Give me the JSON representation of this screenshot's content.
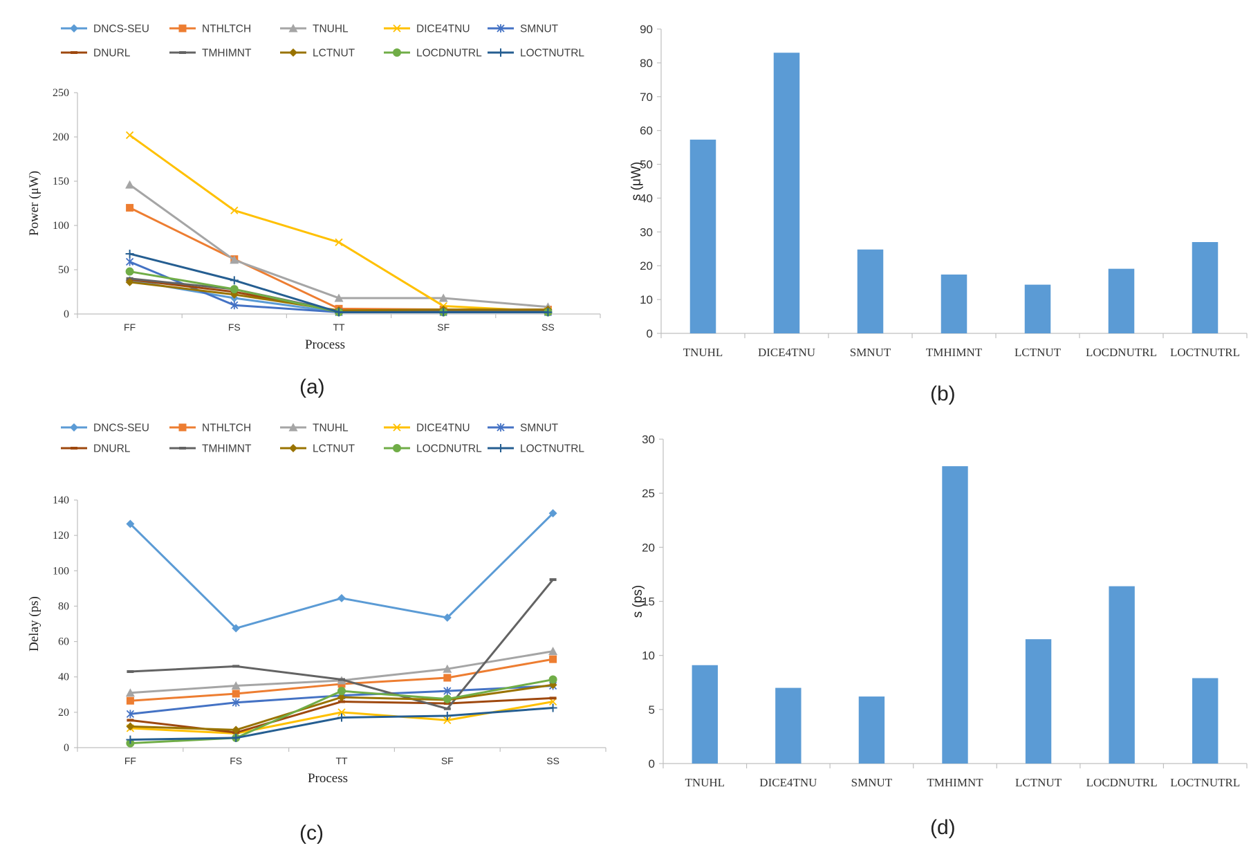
{
  "colors": {
    "DNCS-SEU": "#5b9bd5",
    "NTHLTCH": "#ed7d31",
    "TNUHL": "#a5a5a5",
    "DICE4TNU": "#ffc000",
    "SMNUT": "#4472c4",
    "DNURL": "#9e480e",
    "TMHIMNT": "#636363",
    "LCTNUT": "#997300",
    "LOCDNUTRL": "#70ad47",
    "LOCTNUTRL": "#255e91",
    "bar": "#5b9bd5",
    "axis": "#bfbfbf"
  },
  "markers": {
    "DNCS-SEU": "diamond",
    "NTHLTCH": "square",
    "TNUHL": "triangle",
    "DICE4TNU": "x",
    "SMNUT": "star",
    "DNURL": "dash",
    "TMHIMNT": "dash",
    "LCTNUT": "diamond",
    "LOCDNUTRL": "circle",
    "LOCTNUTRL": "plus"
  },
  "chart_data": [
    {
      "type": "line",
      "panel_label": "(a)",
      "ylabel": "Power (μW)",
      "xlabel": "Process",
      "categories": [
        "FF",
        "FS",
        "TT",
        "SF",
        "SS"
      ],
      "ylim": [
        0,
        250
      ],
      "yticks": [
        0,
        50,
        100,
        150,
        200,
        250
      ],
      "legend_rows": [
        [
          "DNCS-SEU",
          "NTHLTCH",
          "TNUHL",
          "DICE4TNU",
          "SMNUT"
        ],
        [
          "DNURL",
          "TMHIMNT",
          "LCTNUT",
          "LOCDNUTRL",
          "LOCTNUTRL"
        ]
      ],
      "series": [
        {
          "name": "DNCS-SEU",
          "values": [
            38,
            18,
            2,
            2,
            2
          ]
        },
        {
          "name": "NTHLTCH",
          "values": [
            120,
            62,
            6,
            5,
            5
          ]
        },
        {
          "name": "TNUHL",
          "values": [
            146,
            61,
            18,
            18,
            8
          ]
        },
        {
          "name": "DICE4TNU",
          "values": [
            202,
            117,
            81,
            9,
            3
          ]
        },
        {
          "name": "SMNUT",
          "values": [
            59,
            10,
            2,
            2,
            2
          ]
        },
        {
          "name": "DNURL",
          "values": [
            39,
            25,
            3,
            3,
            3
          ]
        },
        {
          "name": "TMHIMNT",
          "values": [
            40,
            28,
            3,
            3,
            3
          ]
        },
        {
          "name": "LCTNUT",
          "values": [
            36,
            22,
            4,
            5,
            5
          ]
        },
        {
          "name": "LOCDNUTRL",
          "values": [
            48,
            28,
            2,
            2,
            2
          ]
        },
        {
          "name": "LOCTNUTRL",
          "values": [
            68,
            38,
            2,
            2,
            2
          ]
        }
      ]
    },
    {
      "type": "bar",
      "panel_label": "(b)",
      "ylabel": "s (μW)",
      "categories": [
        "TNUHL",
        "DICE4TNU",
        "SMNUT",
        "TMHIMNT",
        "LCTNUT",
        "LOCDNUTRL",
        "LOCTNUTRL"
      ],
      "values": [
        57.3,
        83,
        24.8,
        17.4,
        14.4,
        19.1,
        27
      ],
      "ylim": [
        0,
        90
      ],
      "yticks": [
        0,
        10,
        20,
        30,
        40,
        50,
        60,
        70,
        80,
        90
      ]
    },
    {
      "type": "line",
      "panel_label": "(c)",
      "ylabel": "Delay (ps)",
      "xlabel": "Process",
      "categories": [
        "FF",
        "FS",
        "TT",
        "SF",
        "SS"
      ],
      "ylim": [
        0,
        140
      ],
      "yticks": [
        0,
        20,
        40,
        60,
        80,
        100,
        120,
        140
      ],
      "legend_rows": [
        [
          "DNCS-SEU",
          "NTHLTCH",
          "TNUHL",
          "DICE4TNU",
          "SMNUT"
        ],
        [
          "DNURL",
          "TMHIMNT",
          "LCTNUT",
          "LOCDNUTRL",
          "LOCTNUTRL"
        ]
      ],
      "series": [
        {
          "name": "DNCS-SEU",
          "values": [
            126.5,
            67.5,
            84.5,
            73.5,
            132.5
          ]
        },
        {
          "name": "NTHLTCH",
          "values": [
            26.5,
            30.5,
            36,
            39.5,
            50
          ]
        },
        {
          "name": "TNUHL",
          "values": [
            31,
            35,
            38,
            44.5,
            54.5
          ]
        },
        {
          "name": "DICE4TNU",
          "values": [
            11,
            8,
            20,
            15.5,
            26
          ]
        },
        {
          "name": "SMNUT",
          "values": [
            19,
            25.5,
            29.5,
            32,
            35
          ]
        },
        {
          "name": "DNURL",
          "values": [
            15.5,
            8.5,
            26,
            25,
            28
          ]
        },
        {
          "name": "TMHIMNT",
          "values": [
            43,
            46,
            38.5,
            22,
            95
          ]
        },
        {
          "name": "LCTNUT",
          "values": [
            12,
            10,
            28.5,
            27,
            35.5
          ]
        },
        {
          "name": "LOCDNUTRL",
          "values": [
            2.5,
            5.5,
            32,
            27.5,
            38.5
          ]
        },
        {
          "name": "LOCTNUTRL",
          "values": [
            4.5,
            5.5,
            17,
            18,
            22.5
          ]
        }
      ]
    },
    {
      "type": "bar",
      "panel_label": "(d)",
      "ylabel": "s (ps)",
      "categories": [
        "TNUHL",
        "DICE4TNU",
        "SMNUT",
        "TMHIMNT",
        "LCTNUT",
        "LOCDNUTRL",
        "LOCTNUTRL"
      ],
      "values": [
        9.1,
        7,
        6.2,
        27.5,
        11.5,
        16.4,
        7.9
      ],
      "ylim": [
        0,
        30
      ],
      "yticks": [
        0,
        5,
        10,
        15,
        20,
        25,
        30
      ]
    }
  ]
}
